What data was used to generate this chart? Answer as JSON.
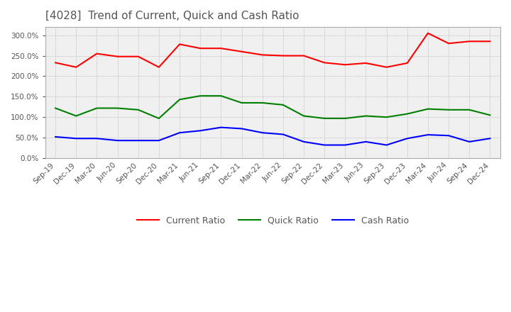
{
  "title": "[4028]  Trend of Current, Quick and Cash Ratio",
  "title_fontsize": 11,
  "title_color": "#555555",
  "background_color": "#ffffff",
  "plot_background": "#f0f0f0",
  "grid_color": "#aaaaaa",
  "ylim": [
    0,
    320
  ],
  "yticks": [
    0,
    50,
    100,
    150,
    200,
    250,
    300
  ],
  "labels": [
    "Sep-19",
    "Dec-19",
    "Mar-20",
    "Jun-20",
    "Sep-20",
    "Dec-20",
    "Mar-21",
    "Jun-21",
    "Sep-21",
    "Dec-21",
    "Mar-22",
    "Jun-22",
    "Sep-22",
    "Dec-22",
    "Mar-23",
    "Jun-23",
    "Sep-23",
    "Dec-23",
    "Mar-24",
    "Jun-24",
    "Sep-24",
    "Dec-24"
  ],
  "current_ratio": [
    233,
    222,
    255,
    248,
    248,
    222,
    278,
    268,
    268,
    260,
    252,
    250,
    250,
    233,
    228,
    232,
    222,
    232,
    305,
    280,
    285,
    285
  ],
  "quick_ratio": [
    122,
    103,
    122,
    122,
    118,
    97,
    143,
    152,
    152,
    135,
    135,
    130,
    103,
    97,
    97,
    103,
    100,
    108,
    120,
    118,
    118,
    105
  ],
  "cash_ratio": [
    52,
    48,
    48,
    43,
    43,
    43,
    62,
    67,
    75,
    72,
    62,
    58,
    40,
    32,
    32,
    40,
    32,
    48,
    57,
    55,
    40,
    48
  ],
  "current_color": "#ff0000",
  "quick_color": "#008000",
  "cash_color": "#0000ff",
  "line_width": 1.5,
  "legend_labels": [
    "Current Ratio",
    "Quick Ratio",
    "Cash Ratio"
  ]
}
